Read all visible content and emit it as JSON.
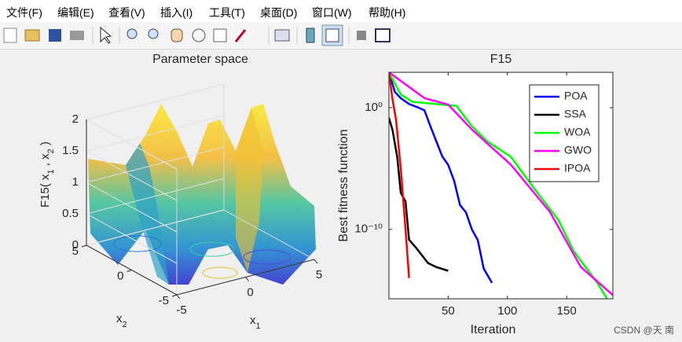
{
  "menu": [
    "文件(F)",
    "编辑(E)",
    "查看(V)",
    "插入(I)",
    "工具(T)",
    "桌面(D)",
    "窗口(W)",
    "帮助(H)"
  ],
  "watermark": "CSDN @天  南",
  "chart_data": [
    {
      "type": "surface",
      "title": "Parameter space",
      "xlabel": [
        "x",
        "1"
      ],
      "ylabel": [
        "x",
        "2"
      ],
      "zlabel": [
        "F15( x",
        "1",
        " , x",
        "2",
        " )"
      ],
      "xlim": [
        -5,
        5
      ],
      "ylim": [
        -5,
        5
      ],
      "zlim": [
        0,
        2
      ],
      "xticks": [
        -5,
        0,
        5
      ],
      "yticks": [
        -5,
        0,
        5
      ],
      "zticks": [
        0,
        0.5,
        1,
        1.5,
        2
      ]
    },
    {
      "type": "line",
      "title": "F15",
      "xlabel": "Iteration",
      "ylabel": "Best fitness function",
      "log_y": true,
      "grid": false,
      "legend": "upper right",
      "xlim": [
        0,
        189
      ],
      "ylim": [
        2e-16,
        800
      ],
      "xticks": [
        50,
        100,
        150
      ],
      "yticks": [
        {
          "value": 1e-10,
          "label": "10⁻¹⁰"
        },
        {
          "value": 1,
          "label": "10⁰"
        }
      ],
      "series": [
        {
          "name": "POA",
          "color": "#0000ff",
          "x": [
            0,
            5,
            10,
            17,
            25,
            30,
            35,
            40,
            45,
            50,
            55,
            60,
            65,
            70,
            75,
            80,
            87
          ],
          "values": [
            800,
            20,
            6,
            2,
            1,
            0.6,
            0.03,
            0.0017,
            0.0001,
            2e-05,
            1e-06,
            1e-08,
            2.5e-09,
            1e-10,
            1.3e-11,
            6e-14,
            4e-15
          ]
        },
        {
          "name": "SSA",
          "color": "#000000",
          "x": [
            0,
            3,
            7,
            10,
            14,
            17,
            23,
            33,
            40,
            50
          ],
          "values": [
            0.15,
            0.015,
            9e-05,
            1e-07,
            2e-08,
            1.4e-11,
            3e-12,
            1.7e-13,
            8e-14,
            4e-14
          ]
        },
        {
          "name": "WOA",
          "color": "#00ff00",
          "x": [
            0,
            10,
            20,
            50,
            57,
            70,
            83,
            103,
            123,
            143,
            156,
            176,
            184
          ],
          "values": [
            800,
            12,
            3,
            1.6,
            1.4,
            0.03,
            0.0017,
            9e-05,
            2e-07,
            6e-10,
            1.6e-12,
            4e-15,
            2e-16
          ]
        },
        {
          "name": "GWO",
          "color": "#ff00ff",
          "x": [
            0,
            30,
            50,
            70,
            103,
            136,
            162,
            189
          ],
          "values": [
            800,
            6,
            1.8,
            0.016,
            2e-05,
            2.6e-09,
            8e-14,
            4e-16
          ]
        },
        {
          "name": "IPOA",
          "color": "#ff0000",
          "x": [
            0,
            3,
            6,
            10,
            14,
            17
          ],
          "values": [
            800,
            5,
            0.1,
            1e-05,
            1e-10,
            1e-14
          ]
        }
      ]
    }
  ]
}
